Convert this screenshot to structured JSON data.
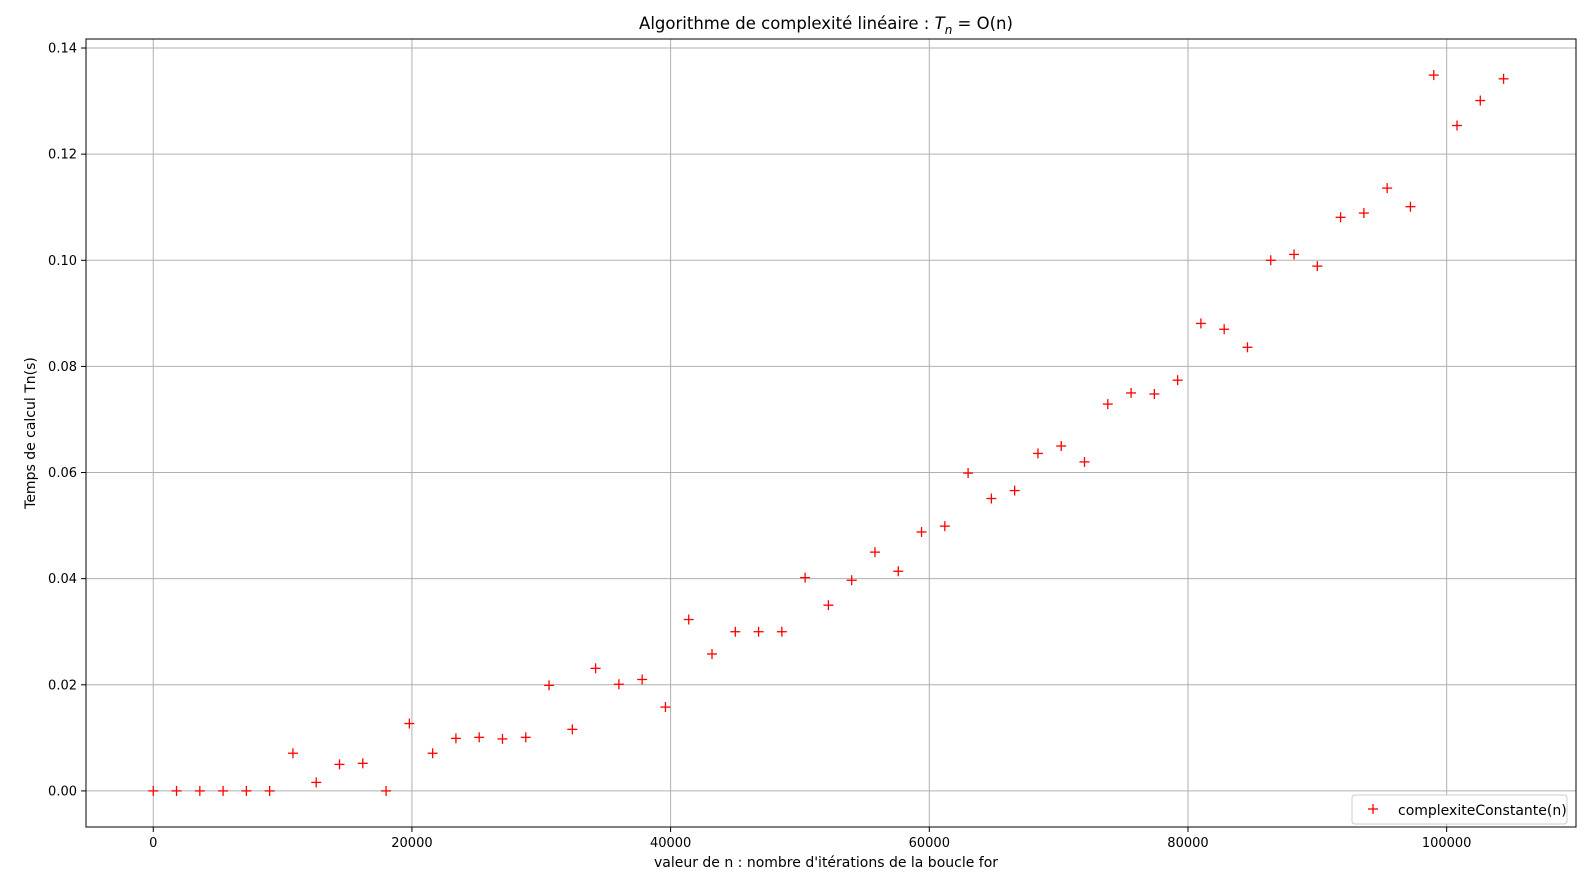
{
  "chart_data": {
    "type": "scatter",
    "title_text": "Algorithme de complexité linéaire : ",
    "title_math": {
      "base": "T",
      "subscript": "n",
      "rest": " = O(n)"
    },
    "xlabel": "valeur de n : nombre d'itérations de la boucle for",
    "ylabel": "Temps de calcul Tn(s)",
    "xlim": [
      -5200,
      110000
    ],
    "ylim": [
      -0.0068,
      0.1417
    ],
    "xticks": [
      0,
      20000,
      40000,
      60000,
      80000,
      100000
    ],
    "xtick_labels": [
      "0",
      "20000",
      "40000",
      "60000",
      "80000",
      "100000"
    ],
    "yticks": [
      0.0,
      0.02,
      0.04,
      0.06,
      0.08,
      0.1,
      0.12,
      0.14
    ],
    "ytick_labels": [
      "0.00",
      "0.02",
      "0.04",
      "0.06",
      "0.08",
      "0.10",
      "0.12",
      "0.14"
    ],
    "grid": true,
    "legend_position": "lower right",
    "series": [
      {
        "name": "complexiteConstante(n)",
        "color": "#ff0000",
        "marker": "+",
        "x": [
          0,
          1800,
          3600,
          5400,
          7200,
          9000,
          10800,
          12600,
          14400,
          16200,
          18000,
          19800,
          21600,
          23400,
          25200,
          27000,
          28800,
          30600,
          32400,
          34200,
          36000,
          37800,
          39600,
          41400,
          43200,
          45000,
          46800,
          48600,
          50400,
          52200,
          54000,
          55800,
          57600,
          59400,
          61200,
          63000,
          64800,
          66600,
          68400,
          70200,
          72000,
          73800,
          75600,
          77400,
          79200,
          81000,
          82800,
          84600,
          86400,
          88200,
          90000,
          91800,
          93600,
          95400,
          97200,
          99000,
          100800,
          102600,
          104400
        ],
        "y": [
          0.0,
          0.0,
          0.0,
          0.0,
          0.0,
          0.0,
          0.0071,
          0.0016,
          0.005,
          0.0052,
          0.0,
          0.0127,
          0.0071,
          0.0099,
          0.0101,
          0.0098,
          0.0101,
          0.0199,
          0.0116,
          0.0231,
          0.0201,
          0.021,
          0.0158,
          0.0323,
          0.0258,
          0.03,
          0.03,
          0.03,
          0.0402,
          0.035,
          0.0397,
          0.045,
          0.0414,
          0.0488,
          0.0499,
          0.0599,
          0.0551,
          0.0566,
          0.0636,
          0.065,
          0.062,
          0.0729,
          0.075,
          0.0748,
          0.0774,
          0.0881,
          0.087,
          0.0836,
          0.1,
          0.1011,
          0.0989,
          0.1081,
          0.1089,
          0.1136,
          0.1101,
          0.1349,
          0.1254,
          0.1301,
          0.1342
        ]
      }
    ]
  }
}
